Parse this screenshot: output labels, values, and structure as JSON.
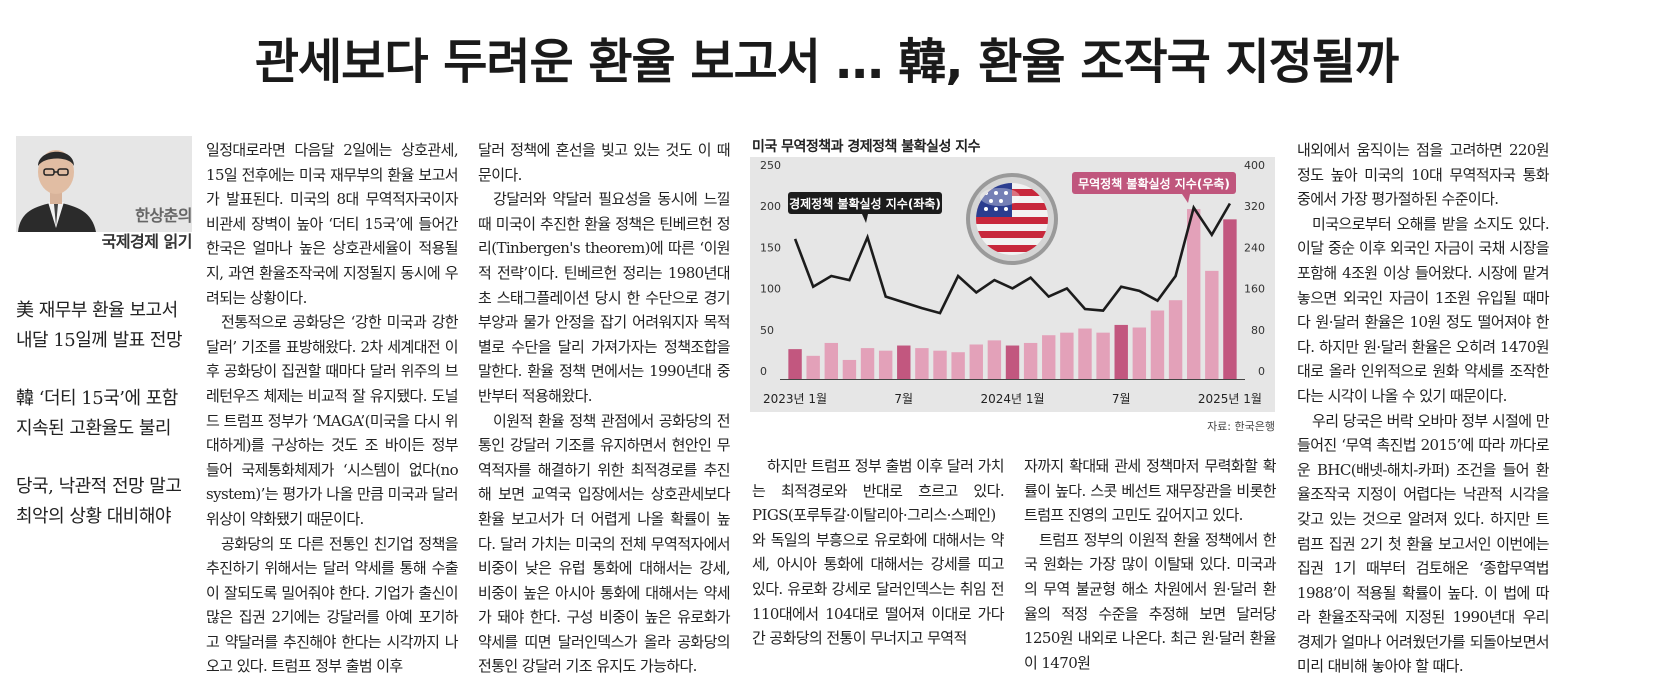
{
  "headline": "관세보다 두려운 환율 보고서 … 韓, 환율 조작국 지정될까",
  "author": {
    "name": "한상춘의",
    "column": "국제경제 읽기"
  },
  "subheads": [
    {
      "line1": "美 재무부 환율 보고서",
      "line2": "내달 15일께 발표 전망"
    },
    {
      "line1": "韓 ‘더티 15국’에 포함",
      "line2": "지속된 고환율도 불리"
    },
    {
      "line1": "당국, 낙관적 전망 말고",
      "line2": "최악의 상황 대비해야"
    }
  ],
  "col1": [
    "일정대로라면 다음달 2일에는 상호관세, 15일 전후에는 미국 재무부의 환율 보고서가 발표된다. 미국의 8대 무역적자국이자 비관세 장벽이 높아 ‘더티 15국’에 들어간 한국은 얼마나 높은 상호관세율이 적용될지, 과연 환율조작국에 지정될지 동시에 우려되는 상황이다.",
    "전통적으로 공화당은 ‘강한 미국과 강한 달러’ 기조를 표방해왔다. 2차 세계대전 이후 공화당이 집권할 때마다 달러 위주의 브레턴우즈 체제는 비교적 잘 유지됐다. 도널드 트럼프 정부가 ‘MAGA’(미국을 다시 위대하게)를 구상하는 것도 조 바이든 정부 들어 국제통화체제가 ‘시스템이 없다(no system)’는 평가가 나올 만큼 미국과 달러 위상이 약화됐기 때문이다.",
    "공화당의 또 다른 전통인 친기업 정책을 추진하기 위해서는 달러 약세를 통해 수출이 잘되도록 밀어줘야 한다. 기업가 출신이 많은 집권 2기에는 강달러를 아예 포기하고 약달러를 추진해야 한다는 시각까지 나오고 있다. 트럼프 정부 출범 이후"
  ],
  "col2": [
    "달러 정책에 혼선을 빚고 있는 것도 이 때문이다.",
    "강달러와 약달러 필요성을 동시에 느낄 때 미국이 추진한 환율 정책은 틴베르헌 정리(Tinbergen's theorem)에 따른 ‘이원적 전략’이다. 틴베르헌 정리는 1980년대 초 스태그플레이션 당시 한 수단으로 경기 부양과 물가 안정을 잡기 어려워지자 목적별로 수단을 달리 가져가자는 정책조합을 말한다. 환율 정책 면에서는 1990년대 중반부터 적용해왔다.",
    "이원적 환율 정책 관점에서 공화당의 전통인 강달러 기조를 유지하면서 현안인 무역적자를 해결하기 위한 최적경로를 추진해 보면 교역국 입장에서는 상호관세보다 환율 보고서가 더 어렵게 나올 확률이 높다. 달러 가치는 미국의 전체 무역적자에서 비중이 낮은 유럽 통화에 대해서는 강세, 비중이 높은 아시아 통화에 대해서는 약세가 돼야 한다. 구성 비중이 높은 유로화가 약세를 띠면 달러인덱스가 올라 공화당의 전통인 강달러 기조 유지도 가능하다."
  ],
  "col3": [
    "하지만 트럼프 정부 출범 이후 달러 가치는 최적경로와 반대로 흐르고 있다. PIGS(포루투갈·이탈리아·그리스·스페인)와 독일의 부흥으로 유로화에 대해서는 약세, 아시아 통화에 대해서는 강세를 띠고 있다. 유로화 강세로 달러인덱스는 취임 전 110대에서 104대로 떨어져 이대로 가다간 공화당의 전통이 무너지고 무역적"
  ],
  "col4": [
    "자까지 확대돼 관세 정책마저 무력화할 확률이 높다. 스콧 베선트 재무장관을 비롯한 트럼프 진영의 고민도 깊어지고 있다.",
    "트럼프 정부의 이원적 환율 정책에서 한국 원화는 가장 많이 이탈돼 있다. 미국과의 무역 불균형 해소 차원에서 원·달러 환율의 적정 수준을 추정해 보면 달러당 1250원 내외로 나온다. 최근 원·달러 환율이 1470원"
  ],
  "col5": [
    "내외에서 움직이는 점을 고려하면 220원 정도 높아 미국의 10대 무역적자국 통화 중에서 가장 평가절하된 수준이다.",
    "미국으로부터 오해를 받을 소지도 있다. 이달 중순 이후 외국인 자금이 국채 시장을 포함해 4조원 이상 들어왔다. 시장에 맡겨놓으면 외국인 자금이 1조원 유입될 때마다 원·달러 환율은 10원 정도 떨어져야 한다. 하지만 원·달러 환율은 오히려 1470원대로 올라 인위적으로 원화 약세를 조작한다는 시각이 나올 수 있기 때문이다.",
    "우리 당국은 버락 오바마 정부 시절에 만들어진 ‘무역 촉진법 2015’에 따라 까다로운 BHC(배넷-해치-카퍼) 조건을 들어 환율조작국 지정이 어렵다는 낙관적 시각을 갖고 있는 것으로 알려져 있다. 하지만 트럼프 집권 2기 첫 환율 보고서인 이번에는 집권 1기 때부터 검토해온 ‘종합무역법 1988’이 적용될 확률이 높다. 이 법에 따라 환율조작국에 지정된 1990년대 우리 경제가 얼마나 어려웠던가를 되돌아보면서 미리 대비해 놓아야 할 때다."
  ],
  "chart_title": "미국 무역정책과 경제정책 불확실성 지수",
  "chart_source": "자료: 한국은행",
  "colors": {
    "background": "#e6e6e6",
    "bar": "#e3a1b9",
    "bar_highlight": "#c2577f",
    "line": "#1c1c1c",
    "trade_label_bg": "#c0567d",
    "econ_label_bg": "#1c1c1c"
  },
  "chart_data": {
    "type": "bar",
    "title": "미국 무역정책과 경제정책 불확실성 지수",
    "x_tick_labels": [
      "2023년 1월",
      "7월",
      "2024년 1월",
      "7월",
      "2025년 1월"
    ],
    "x_tick_positions": [
      0,
      6,
      12,
      18,
      24
    ],
    "yleft_ticks": [
      0,
      50,
      100,
      150,
      200,
      250
    ],
    "yright_ticks": [
      0,
      80,
      160,
      240,
      320,
      400
    ],
    "ylim_left": [
      0,
      250
    ],
    "ylim_right": [
      0,
      400
    ],
    "series": [
      {
        "name": "무역정책 불확실성 지수(우축)",
        "type": "bar",
        "axis": "right",
        "values": [
          58,
          45,
          70,
          37,
          60,
          55,
          65,
          60,
          55,
          52,
          67,
          75,
          65,
          70,
          85,
          90,
          98,
          90,
          105,
          100,
          133,
          153,
          330,
          210,
          310
        ],
        "highlight_indices": [
          0,
          6,
          12,
          18,
          24
        ]
      },
      {
        "name": "경제정책 불확실성 지수(좌축)",
        "type": "line",
        "axis": "left",
        "values": [
          170,
          112,
          125,
          120,
          172,
          100,
          93,
          86,
          80,
          125,
          105,
          120,
          110,
          123,
          100,
          110,
          85,
          83,
          112,
          107,
          95,
          125,
          208,
          175,
          213
        ]
      }
    ]
  }
}
